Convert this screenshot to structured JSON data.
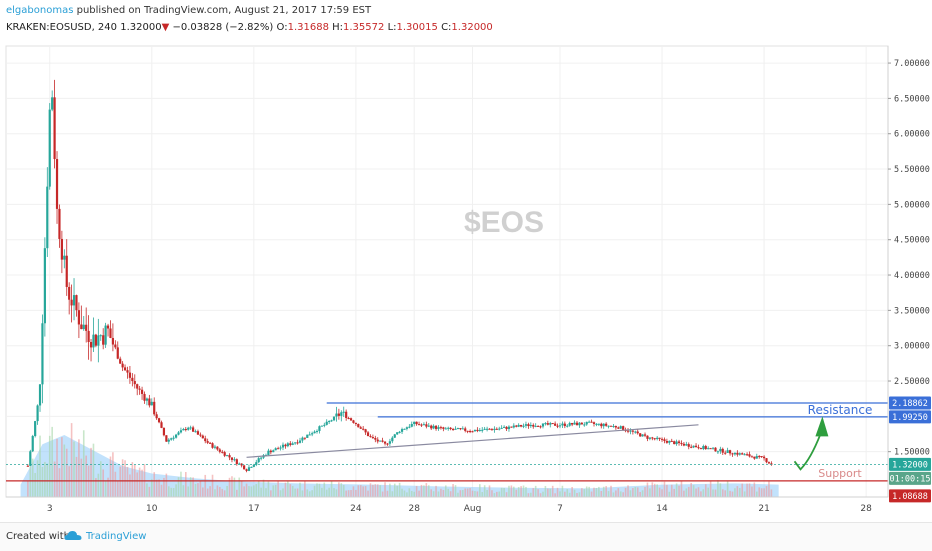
{
  "header": {
    "author": "elgabonomas",
    "published_text": "published on TradingView.com, August 21, 2017 17:59 EST",
    "symbol": "KRAKEN:EOSUSD, 240",
    "last_price": "1.32000",
    "change_arrow": "▼",
    "change": "−0.03828 (−2.82%)",
    "o_label": "O:",
    "o_value": "1.31688",
    "h_label": "H:",
    "h_value": "1.35572",
    "l_label": "L:",
    "l_value": "1.30015",
    "c_label": "C:",
    "c_value": "1.32000"
  },
  "footer": {
    "created_with": "Created with",
    "brand": "TradingView"
  },
  "colors": {
    "up": "#26a69a",
    "down": "#c62828",
    "resistance": "#3a6fd8",
    "support": "#c62828",
    "trendline": "#8a8aa0",
    "volume_area": "#90caf9",
    "arrow": "#2e9e3e",
    "watermark": "#d0d0d0",
    "gridline": "#f0f0f0"
  },
  "chart_data": {
    "type": "candlestick",
    "watermark": "$EOS",
    "ylim": [
      1.0,
      7.1
    ],
    "y_ticks": [
      1.5,
      2.0,
      2.5,
      3.0,
      3.5,
      4.0,
      4.5,
      5.0,
      5.5,
      6.0,
      6.5,
      7.0
    ],
    "y_tick_labels": [
      "1.50000",
      "",
      "2.50000",
      "3.00000",
      "3.50000",
      "4.00000",
      "4.50000",
      "5.00000",
      "5.50000",
      "6.00000",
      "6.50000",
      "7.00000"
    ],
    "x_ticks": [
      {
        "day": 3,
        "label": "3"
      },
      {
        "day": 10,
        "label": "10"
      },
      {
        "day": 17,
        "label": "17"
      },
      {
        "day": 24,
        "label": "24"
      },
      {
        "day": 28,
        "label": "28"
      },
      {
        "day": 32,
        "label": "Aug"
      },
      {
        "day": 38,
        "label": "7"
      },
      {
        "day": 45,
        "label": "14"
      },
      {
        "day": 52,
        "label": "21"
      },
      {
        "day": 59,
        "label": "28"
      }
    ],
    "xlim": [
      0,
      60.5
    ],
    "price_series_summary": [
      {
        "day": 1.5,
        "price": 1.3
      },
      {
        "day": 2.3,
        "price": 2.3
      },
      {
        "day": 3.1,
        "price": 6.9
      },
      {
        "day": 3.5,
        "price": 4.9
      },
      {
        "day": 4.2,
        "price": 3.8
      },
      {
        "day": 5.2,
        "price": 3.3
      },
      {
        "day": 6.0,
        "price": 3.1
      },
      {
        "day": 7.0,
        "price": 3.2
      },
      {
        "day": 8.0,
        "price": 2.7
      },
      {
        "day": 9.0,
        "price": 2.4
      },
      {
        "day": 10.0,
        "price": 2.15
      },
      {
        "day": 11.0,
        "price": 1.65
      },
      {
        "day": 12.5,
        "price": 1.85
      },
      {
        "day": 14.0,
        "price": 1.6
      },
      {
        "day": 15.5,
        "price": 1.4
      },
      {
        "day": 16.5,
        "price": 1.25
      },
      {
        "day": 18.0,
        "price": 1.5
      },
      {
        "day": 20.0,
        "price": 1.65
      },
      {
        "day": 22.0,
        "price": 1.9
      },
      {
        "day": 23.0,
        "price": 2.05
      },
      {
        "day": 24.0,
        "price": 1.9
      },
      {
        "day": 25.0,
        "price": 1.7
      },
      {
        "day": 26.0,
        "price": 1.6
      },
      {
        "day": 27.0,
        "price": 1.8
      },
      {
        "day": 28.0,
        "price": 1.9
      },
      {
        "day": 30.0,
        "price": 1.82
      },
      {
        "day": 32.0,
        "price": 1.8
      },
      {
        "day": 34.0,
        "price": 1.83
      },
      {
        "day": 36.0,
        "price": 1.88
      },
      {
        "day": 38.0,
        "price": 1.88
      },
      {
        "day": 40.0,
        "price": 1.9
      },
      {
        "day": 42.0,
        "price": 1.85
      },
      {
        "day": 44.0,
        "price": 1.7
      },
      {
        "day": 46.0,
        "price": 1.62
      },
      {
        "day": 48.0,
        "price": 1.55
      },
      {
        "day": 50.0,
        "price": 1.48
      },
      {
        "day": 52.0,
        "price": 1.4
      },
      {
        "day": 52.5,
        "price": 1.32
      }
    ],
    "volume_area_summary": [
      {
        "day": 1.0,
        "vol": 0.2
      },
      {
        "day": 2.5,
        "vol": 0.85
      },
      {
        "day": 4.0,
        "vol": 1.0
      },
      {
        "day": 6.0,
        "vol": 0.75
      },
      {
        "day": 8.0,
        "vol": 0.5
      },
      {
        "day": 10.0,
        "vol": 0.38
      },
      {
        "day": 13.0,
        "vol": 0.3
      },
      {
        "day": 16.0,
        "vol": 0.25
      },
      {
        "day": 20.0,
        "vol": 0.22
      },
      {
        "day": 25.0,
        "vol": 0.2
      },
      {
        "day": 30.0,
        "vol": 0.17
      },
      {
        "day": 35.0,
        "vol": 0.15
      },
      {
        "day": 40.0,
        "vol": 0.14
      },
      {
        "day": 45.0,
        "vol": 0.2
      },
      {
        "day": 50.0,
        "vol": 0.22
      },
      {
        "day": 53.0,
        "vol": 0.2
      }
    ],
    "annotations": {
      "resistance_upper": {
        "price": 2.18862,
        "start_day": 22.0,
        "label": "2.18862"
      },
      "resistance_lower": {
        "price": 1.9925,
        "start_day": 25.5,
        "label": "1.99250"
      },
      "resistance_text": "Resistance",
      "support": {
        "price": 1.08688,
        "label": "1.08688"
      },
      "support_text": "Support",
      "current_price": {
        "price": 1.32,
        "label": "1.32000"
      },
      "countdown": "01:00:15",
      "trendline": {
        "start_day": 16.5,
        "start_price": 1.42,
        "end_day": 47.5,
        "end_price": 1.88
      },
      "projection_arrow": {
        "from_day": 54.5,
        "from_price": 1.25,
        "to_day": 56.0,
        "to_price": 2.0
      }
    }
  }
}
